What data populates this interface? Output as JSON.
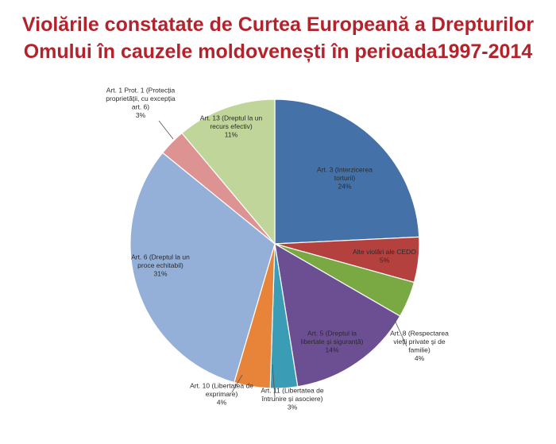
{
  "title_lines": [
    "Violările constatate de Curtea Europeană a Drepturilor",
    "Omului în cauzele moldovenești în perioada1997-2014"
  ],
  "chart_data": {
    "type": "pie",
    "title": "Violările constatate de Curtea Europeană a Drepturilor Omului în cauzele moldovenești în perioada1997-2014",
    "start_angle_deg": 0,
    "direction": "clockwise",
    "slices": [
      {
        "label_lines": [
          "Art. 3 (Interzicerea",
          "torturii)"
        ],
        "percent_text": "24%",
        "value": 24,
        "color": "#4472a8"
      },
      {
        "label_lines": [
          "Alte violări ale CEDO"
        ],
        "percent_text": "5%",
        "value": 5,
        "color": "#b5413e"
      },
      {
        "label_lines": [
          "Art. 8 (Respectarea",
          "vieţii private şi de",
          "familie)"
        ],
        "percent_text": "4%",
        "value": 4,
        "color": "#7aa843"
      },
      {
        "label_lines": [
          "Art. 5 (Dreptul la",
          "libertate și siguranță)"
        ],
        "percent_text": "14%",
        "value": 14,
        "color": "#6b4f92"
      },
      {
        "label_lines": [
          "Art. 11 (Libertatea de",
          "întrunire și asociere)"
        ],
        "percent_text": "3%",
        "value": 3,
        "color": "#3a9cb5"
      },
      {
        "label_lines": [
          "Art. 10 (Libertatea de",
          "exprimare)"
        ],
        "percent_text": "4%",
        "value": 4,
        "color": "#e8843a"
      },
      {
        "label_lines": [
          "Art. 6 (Dreptul la un",
          "proce echitabil)"
        ],
        "percent_text": "31%",
        "value": 31,
        "color": "#94b0d8"
      },
      {
        "label_lines": [
          "Art. 1 Prot. 1 (Protecția",
          "proprietății, cu excepția",
          "art. 6)"
        ],
        "percent_text": "3%",
        "value": 3,
        "color": "#dd9391"
      },
      {
        "label_lines": [
          "Art. 13 (Dreptul la un",
          "recurs efectiv)"
        ],
        "percent_text": "11%",
        "value": 11,
        "color": "#c0d59a"
      }
    ]
  }
}
